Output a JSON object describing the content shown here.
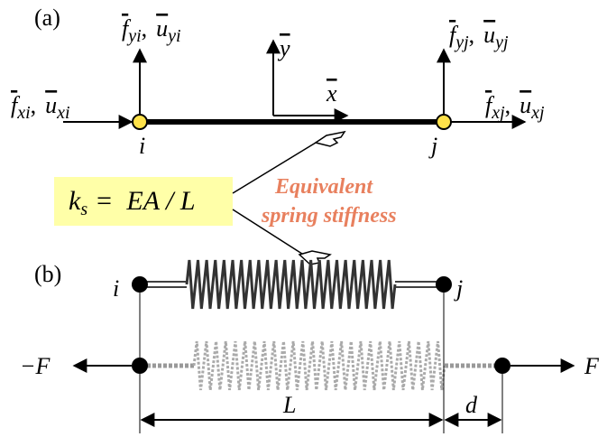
{
  "panel_a": {
    "label": "(a)",
    "node_i": "i",
    "node_j": "j",
    "axis_y": "y",
    "axis_x": "x",
    "load_yi": {
      "force": "f",
      "force_sub": "yi",
      "separator": ",",
      "disp": "u",
      "disp_sub": "yi"
    },
    "load_yj": {
      "force": "f",
      "force_sub": "yj",
      "separator": ",",
      "disp": "u",
      "disp_sub": "yj"
    },
    "load_xi": {
      "force": "f",
      "force_sub": "xi",
      "separator": ",",
      "disp": "u",
      "disp_sub": "xi"
    },
    "load_xj": {
      "force": "f",
      "force_sub": "xj",
      "separator": ",",
      "disp": "u",
      "disp_sub": "xj"
    }
  },
  "stiffness": {
    "lhs": "k",
    "lhs_sub": "s",
    "equation": "=  EA / L"
  },
  "annotation": [
    "Equivalent",
    "spring stiffness"
  ],
  "panel_b": {
    "label": "(b)",
    "node_i": "i",
    "node_j": "j",
    "force_left": "−F",
    "force_right": "F",
    "length": "L",
    "extension": "d"
  }
}
